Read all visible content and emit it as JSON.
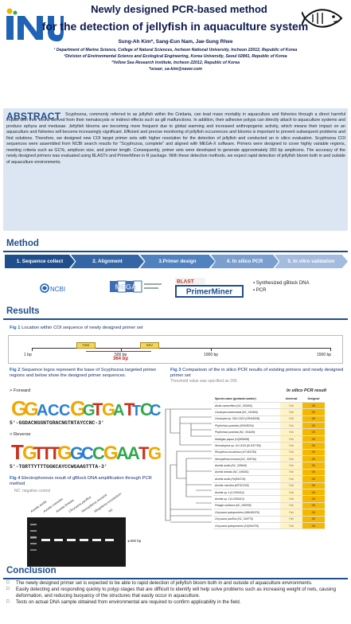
{
  "header": {
    "title_line1": "Newly designed PCR-based method",
    "title_line2": "for the detection of  jellyfish in aquaculture system",
    "authors": "Sung-Ah Kim*, Sang-Eun Nam, Jae-Sung Rhee",
    "aff1": "¹ Department of Marine Science, College of Natural Sciences, Incheon National University, Incheon 22012, Republic of Korea",
    "aff2": "²Division of Environmental Science and Ecological Engineering, Korea University, Seoul 02841, Republic of Korea",
    "aff3": "³Yellow Sea Research Institute, Incheon 22012, Republic of Korea",
    "email": "*ocean_sa-kim@naver.com",
    "logo_text": "INU"
  },
  "abstract": {
    "heading": "ABSTRACT",
    "text": "Scyphozoa, commonly referred to as jellyfish within the Cnidaria, can lead mass mortality in aquaculture and fisheries through a direct harmful impact with their toxins derived from their nematocysts or indirect effects such as gill malfunctions. In addition, their adhesive polyps can directly attach to aquaculture systems and produce ephyra and medusae. Jellyfish blooms are becoming more frequent due to global warming and increased anthropogenic activity, which means their impact on an aquaculture and fisheries will become increasingly significant. Efficient and precise monitoring of jellyfish occurrences and blooms is important to prevent subsequent problems and find solutions. Therefore, we designed new COI target primer sets with higher resolution for the detection of jellyfish and conducted an in silico evaluation. Scyphozoa COI sequences were assembled from NCBI search results for \"Scyphozoa, complete\" and aligned with MEGA-X software. Primers were designed to cover highly variable regions, meeting criteria such as GC%, amplicon size, and primer length. Consequently, primer sets were developed to generate approximately 350 bp amplicons. The accuracy of the newly designed primers was evaluated using BLASTn and PrimerMiner in R package. With these detection methods, we expect rapid detection of jellyfish bloom both in and outside of aquaculture environments."
  },
  "method": {
    "heading": "Method",
    "steps": [
      "1. Sequence collect",
      "2. Alignment",
      "3.Primer design",
      "4. In silico PCR",
      "5. In vitro validation"
    ],
    "step_colors": [
      "#1f4e8c",
      "#3466a6",
      "#4f82bf",
      "#7a9fcf",
      "#a3bbdd"
    ],
    "tools": {
      "ncbi": "NCBI",
      "mega": "MEGA",
      "blast": "BLAST",
      "primerminer": "PrimerMiner"
    },
    "bullets": [
      "Synthesized gBlock DNA",
      "PCR"
    ]
  },
  "results": {
    "heading": "Results",
    "fig1_num": "Fig 1",
    "fig1_caption": "Location within COI sequence of newly designed primer set",
    "fig1_ticks": [
      "1 bp",
      "500 bp",
      "1000 bp",
      "1500 bp"
    ],
    "fig1_fwd": "FWD",
    "fig1_rev": "REV",
    "fig1_amplicon": "364 bp",
    "fig2_num": "Fig 2",
    "fig2_caption": "Sequence logos represent the base of Scyphozoa targeted primer regions and below show the designed primer sequences.",
    "forward_label": "> Forward",
    "forward_seq": "5'-GGDACNGGNTGRACNGTNTAYCCNC-3'",
    "reverse_label": "> Reverse",
    "reverse_seq": "5'-TGRTTYTTTGGKCAYCCWGAAGTTTA-3'",
    "fig3_num": "Fig 3",
    "fig3_caption": "Comparison of the in silico PCR results of existing primers and newly designed primer set",
    "fig3_note": "Threshold value was specified as 200.",
    "fig3_table_title": "In silico PCR result",
    "fig3_cols": [
      "Species name (genbank number)",
      "Universal",
      "Designed"
    ],
    "fig3_rows": [
      [
        "Atolla vanhoeffeni (NC_051859)",
        "Fail",
        "OK"
      ],
      [
        "Cassiopea andromeda (NC_016466)",
        "Fail",
        "OK"
      ],
      [
        "Cassiopea sp. SNU-2023 (OR408208)",
        "Fail",
        "OK"
      ],
      [
        "Phyllorhiza punctata (OR408204)",
        "Fail",
        "OK"
      ],
      [
        "Phyllorhiza punctata (NC_064180)",
        "Fail",
        "OK"
      ],
      [
        "Mastigias papua (OQ889496)",
        "Fail",
        "OK"
      ],
      [
        "Stomolophus sp. OG-2015 (KU187785)",
        "Fail",
        "OK"
      ],
      [
        "Rhopilema esculentum (KY454799)",
        "Fail",
        "OK"
      ],
      [
        "Nemopilema nomurai (NC_008746)",
        "Fail",
        "OK"
      ],
      [
        "Aurelia aurita (NC_008446)",
        "Fail",
        "OK"
      ],
      [
        "Aurelia limbata (NC_046691)",
        "Fail",
        "OK"
      ],
      [
        "Aurelia aurita (HQ694729)",
        "Fail",
        "OK"
      ],
      [
        "Aurelia coerulea (MT323105)",
        "Fail",
        "OK"
      ],
      [
        "Aurelia sp. 4 (LC006414)",
        "Fail",
        "OK"
      ],
      [
        "Aurelia sp. 3 (LC006413)",
        "Fail",
        "OK"
      ],
      [
        "Pelagia noctiluca (NC_060058)",
        "Fail",
        "OK"
      ],
      [
        "Chrysaora quinquecirrha (MW451876)",
        "Fail",
        "OK"
      ],
      [
        "Chrysaora pacifica (NC_046776)",
        "Fail",
        "OK"
      ],
      [
        "Chrysaora quinquecirrha (HQ694730)",
        "Fail",
        "OK"
      ]
    ],
    "fig4_num": "Fig 4",
    "fig4_caption": "Electrophoresis result of gBlock DNA amplification through PCR method",
    "fig4_note": "NC: negative control",
    "fig4_lanes": [
      "Aurelia aurita",
      "Aurelia coerulea",
      "Aurelia limbata",
      "Chrysaora pacifica",
      "Nemopilema nomurai",
      "Rhopilema esculentum",
      "NC"
    ],
    "fig4_marker": "500 bp"
  },
  "conclusion": {
    "heading": "Conclusion",
    "items": [
      "The newly designed primer set is expected to be able to rapid detection of jellyfish bloom both in and outside of aquaculture environments.",
      "Easily detecting and responding quickly to polyp stages that are difficult to identify will help solve problems such as increasing weight of nets, causing deformation, and reducing buoyancy of the structures that easily occur in aquaculture.",
      "Tests on actual DNA sample obtained from environmental are required to confirm applicability in the field."
    ]
  }
}
